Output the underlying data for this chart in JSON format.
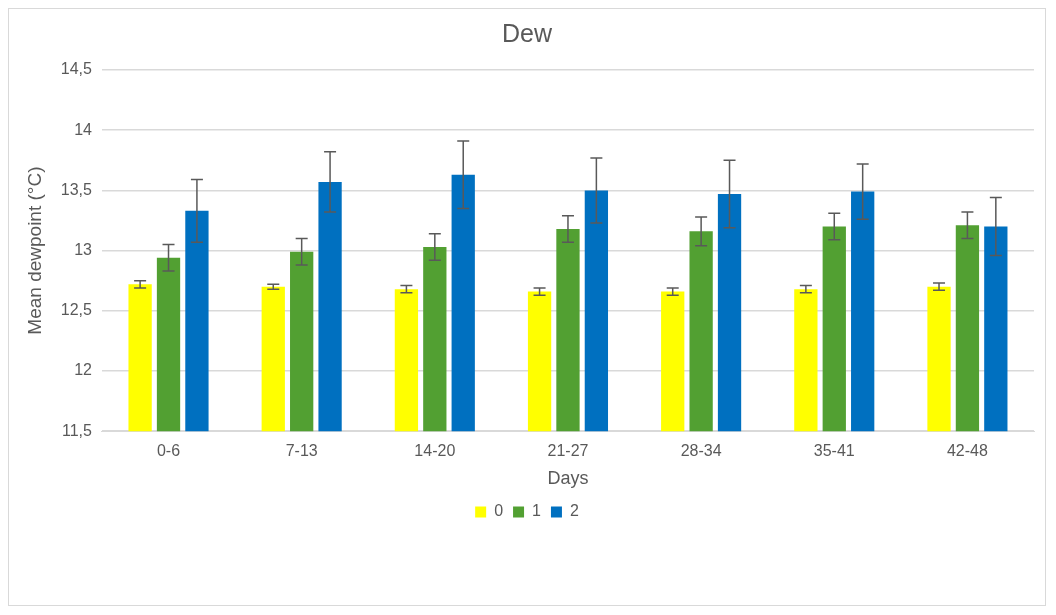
{
  "chart_data": {
    "type": "bar",
    "title": "Dew",
    "xlabel": "Days",
    "ylabel": "Mean dewpoint (°C)",
    "categories": [
      "0-6",
      "7-13",
      "14-20",
      "21-27",
      "28-34",
      "35-41",
      "42-48"
    ],
    "series": [
      {
        "name": "0",
        "color": "#ffff00",
        "values": [
          12.72,
          12.7,
          12.68,
          12.66,
          12.66,
          12.68,
          12.7
        ],
        "errors": [
          0.03,
          0.02,
          0.03,
          0.03,
          0.03,
          0.03,
          0.03
        ]
      },
      {
        "name": "1",
        "color": "#52a032",
        "values": [
          12.94,
          12.99,
          13.03,
          13.18,
          13.16,
          13.2,
          13.21
        ],
        "errors": [
          0.11,
          0.11,
          0.11,
          0.11,
          0.12,
          0.11,
          0.11
        ]
      },
      {
        "name": "2",
        "color": "#0070c0",
        "values": [
          13.33,
          13.57,
          13.63,
          13.5,
          13.47,
          13.49,
          13.2
        ],
        "errors": [
          0.26,
          0.25,
          0.28,
          0.27,
          0.28,
          0.23,
          0.24
        ]
      }
    ],
    "ylim": [
      11.5,
      14.5
    ],
    "yticks": [
      {
        "value": 11.5,
        "label": "11,5"
      },
      {
        "value": 12,
        "label": "12"
      },
      {
        "value": 12.5,
        "label": "12,5"
      },
      {
        "value": 13,
        "label": "13"
      },
      {
        "value": 13.5,
        "label": "13,5"
      },
      {
        "value": 14,
        "label": "14"
      },
      {
        "value": 14.5,
        "label": "14,5"
      }
    ],
    "grid": "y",
    "legend": "bottom"
  }
}
